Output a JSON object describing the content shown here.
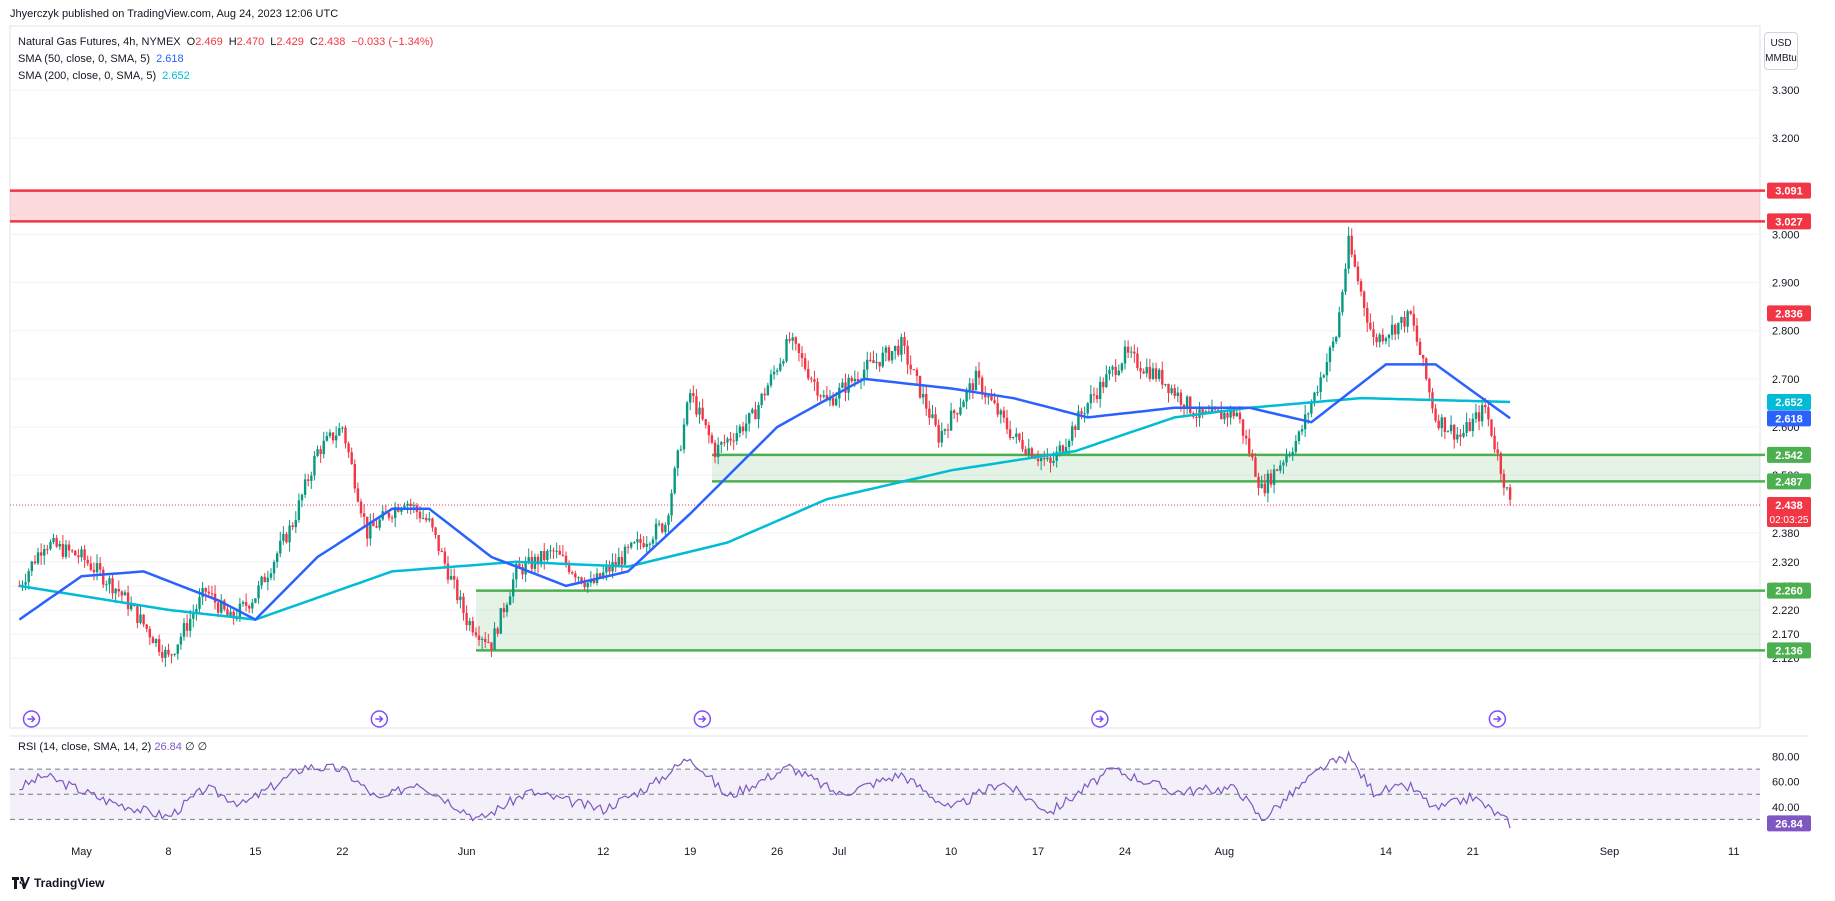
{
  "header": {
    "published": "Jhyerczyk published on TradingView.com, Aug 24, 2023 12:06 UTC"
  },
  "legend": {
    "symbol": "Natural Gas Futures, 4h, NYMEX",
    "open_label": "O",
    "open": "2.469",
    "high_label": "H",
    "high": "2.470",
    "low_label": "L",
    "low": "2.429",
    "close_label": "C",
    "close": "2.438",
    "change": "−0.033 (−1.34%)",
    "sma50_label": "SMA (50, close, 0, SMA, 5)",
    "sma50_value": "2.618",
    "sma200_label": "SMA (200, close, 0, SMA, 5)",
    "sma200_value": "2.652"
  },
  "unit": {
    "line1": "USD",
    "line2": "MMBtu"
  },
  "rsi": {
    "label": "RSI (14, close, SMA, 14, 2)",
    "value": "26.84",
    "extra": "∅ ∅"
  },
  "brand": "TradingView",
  "colors": {
    "up": "#089981",
    "down": "#f23645",
    "sma50": "#2962ff",
    "sma200": "#00bcd4",
    "resistance": "#f23645",
    "support": "#4caf50",
    "rsi": "#7e57c2"
  },
  "chart_data": {
    "type": "candlestick",
    "timeframe": "4h",
    "price_axis_ticks": [
      "3.300",
      "3.200",
      "3.000",
      "2.900",
      "2.800",
      "2.700",
      "2.600",
      "2.500",
      "2.380",
      "2.320",
      "2.270",
      "2.220",
      "2.170",
      "2.120"
    ],
    "time_axis_ticks": [
      "May",
      "8",
      "15",
      "22",
      "Jun",
      "12",
      "19",
      "26",
      "Jul",
      "10",
      "17",
      "24",
      "Aug",
      "14",
      "21",
      "Sep",
      "11"
    ],
    "ylim": [
      2.1,
      3.35
    ],
    "price_path_anchors": [
      {
        "date": "Apr 26",
        "value": 2.27
      },
      {
        "date": "Apr 28",
        "value": 2.36
      },
      {
        "date": "May 1",
        "value": 2.33
      },
      {
        "date": "May 4",
        "value": 2.26
      },
      {
        "date": "May 8",
        "value": 2.12
      },
      {
        "date": "May 11",
        "value": 2.26
      },
      {
        "date": "May 13",
        "value": 2.2
      },
      {
        "date": "May 15",
        "value": 2.25
      },
      {
        "date": "May 18",
        "value": 2.4
      },
      {
        "date": "May 20",
        "value": 2.55
      },
      {
        "date": "May 22",
        "value": 2.6
      },
      {
        "date": "May 24",
        "value": 2.38
      },
      {
        "date": "May 27",
        "value": 2.45
      },
      {
        "date": "May 29",
        "value": 2.4
      },
      {
        "date": "Jun 1",
        "value": 2.2
      },
      {
        "date": "Jun 3",
        "value": 2.15
      },
      {
        "date": "Jun 5",
        "value": 2.3
      },
      {
        "date": "Jun 8",
        "value": 2.34
      },
      {
        "date": "Jun 11",
        "value": 2.27
      },
      {
        "date": "Jun 14",
        "value": 2.34
      },
      {
        "date": "Jun 17",
        "value": 2.4
      },
      {
        "date": "Jun 19",
        "value": 2.67
      },
      {
        "date": "Jun 21",
        "value": 2.55
      },
      {
        "date": "Jun 24",
        "value": 2.62
      },
      {
        "date": "Jun 27",
        "value": 2.78
      },
      {
        "date": "Jun 30",
        "value": 2.65
      },
      {
        "date": "Jul 3",
        "value": 2.72
      },
      {
        "date": "Jul 6",
        "value": 2.77
      },
      {
        "date": "Jul 9",
        "value": 2.58
      },
      {
        "date": "Jul 12",
        "value": 2.7
      },
      {
        "date": "Jul 15",
        "value": 2.58
      },
      {
        "date": "Jul 18",
        "value": 2.52
      },
      {
        "date": "Jul 21",
        "value": 2.65
      },
      {
        "date": "Jul 24",
        "value": 2.75
      },
      {
        "date": "Jul 27",
        "value": 2.7
      },
      {
        "date": "Jul 30",
        "value": 2.62
      },
      {
        "date": "Aug 2",
        "value": 2.63
      },
      {
        "date": "Aug 4",
        "value": 2.47
      },
      {
        "date": "Aug 7",
        "value": 2.58
      },
      {
        "date": "Aug 10",
        "value": 2.79
      },
      {
        "date": "Aug 11",
        "value": 2.98
      },
      {
        "date": "Aug 13",
        "value": 2.78
      },
      {
        "date": "Aug 16",
        "value": 2.83
      },
      {
        "date": "Aug 18",
        "value": 2.62
      },
      {
        "date": "Aug 20",
        "value": 2.58
      },
      {
        "date": "Aug 22",
        "value": 2.64
      },
      {
        "date": "Aug 24",
        "value": 2.44
      }
    ],
    "sma50_anchors": [
      {
        "date": "Apr 26",
        "value": 2.2
      },
      {
        "date": "May 1",
        "value": 2.29
      },
      {
        "date": "May 6",
        "value": 2.3
      },
      {
        "date": "May 12",
        "value": 2.24
      },
      {
        "date": "May 15",
        "value": 2.2
      },
      {
        "date": "May 20",
        "value": 2.33
      },
      {
        "date": "May 26",
        "value": 2.43
      },
      {
        "date": "May 29",
        "value": 2.43
      },
      {
        "date": "Jun 3",
        "value": 2.33
      },
      {
        "date": "Jun 9",
        "value": 2.27
      },
      {
        "date": "Jun 14",
        "value": 2.3
      },
      {
        "date": "Jun 19",
        "value": 2.42
      },
      {
        "date": "Jun 26",
        "value": 2.6
      },
      {
        "date": "Jul 3",
        "value": 2.7
      },
      {
        "date": "Jul 10",
        "value": 2.68
      },
      {
        "date": "Jul 15",
        "value": 2.66
      },
      {
        "date": "Jul 21",
        "value": 2.62
      },
      {
        "date": "Jul 28",
        "value": 2.64
      },
      {
        "date": "Aug 3",
        "value": 2.64
      },
      {
        "date": "Aug 8",
        "value": 2.61
      },
      {
        "date": "Aug 14",
        "value": 2.73
      },
      {
        "date": "Aug 18",
        "value": 2.73
      },
      {
        "date": "Aug 24",
        "value": 2.618
      }
    ],
    "sma200_anchors": [
      {
        "date": "Apr 26",
        "value": 2.27
      },
      {
        "date": "May 8",
        "value": 2.22
      },
      {
        "date": "May 15",
        "value": 2.2
      },
      {
        "date": "May 26",
        "value": 2.3
      },
      {
        "date": "Jun 5",
        "value": 2.32
      },
      {
        "date": "Jun 14",
        "value": 2.31
      },
      {
        "date": "Jun 22",
        "value": 2.36
      },
      {
        "date": "Jun 30",
        "value": 2.45
      },
      {
        "date": "Jul 10",
        "value": 2.51
      },
      {
        "date": "Jul 20",
        "value": 2.55
      },
      {
        "date": "Jul 28",
        "value": 2.62
      },
      {
        "date": "Aug 3",
        "value": 2.64
      },
      {
        "date": "Aug 12",
        "value": 2.66
      },
      {
        "date": "Aug 24",
        "value": 2.652
      }
    ],
    "zones": [
      {
        "name": "resistance",
        "from": 3.027,
        "to": 3.091,
        "color": "#f23645"
      },
      {
        "name": "support",
        "from": 2.487,
        "to": 2.542,
        "color": "#4caf50"
      },
      {
        "name": "support",
        "from": 2.136,
        "to": 2.26,
        "color": "#4caf50"
      }
    ],
    "price_labels": [
      {
        "value": "3.091",
        "color": "#f23645"
      },
      {
        "value": "3.027",
        "color": "#f23645"
      },
      {
        "value": "2.836",
        "color": "#f23645"
      },
      {
        "value": "2.652",
        "color": "#00bcd4"
      },
      {
        "value": "2.618",
        "color": "#2962ff"
      },
      {
        "value": "2.542",
        "color": "#4caf50"
      },
      {
        "value": "2.487",
        "color": "#4caf50"
      },
      {
        "value": "2.438",
        "color": "#f23645"
      },
      {
        "value": "2.260",
        "color": "#4caf50"
      },
      {
        "value": "2.136",
        "color": "#4caf50"
      }
    ],
    "countdown": "02:03:25",
    "rsi": {
      "ylim": [
        20,
        90
      ],
      "ticks": [
        "80.00",
        "60.00",
        "40.00"
      ],
      "upper_band": 70,
      "mid": 50,
      "lower_band": 30,
      "last": "26.84",
      "anchors": [
        {
          "date": "Apr 26",
          "value": 55
        },
        {
          "date": "Apr 28",
          "value": 65
        },
        {
          "date": "May 3",
          "value": 45
        },
        {
          "date": "May 8",
          "value": 32
        },
        {
          "date": "May 11",
          "value": 55
        },
        {
          "date": "May 14",
          "value": 42
        },
        {
          "date": "May 19",
          "value": 72
        },
        {
          "date": "May 22",
          "value": 70
        },
        {
          "date": "May 25",
          "value": 45
        },
        {
          "date": "May 28",
          "value": 60
        },
        {
          "date": "Jun 2",
          "value": 30
        },
        {
          "date": "Jun 6",
          "value": 52
        },
        {
          "date": "Jun 12",
          "value": 38
        },
        {
          "date": "Jun 16",
          "value": 58
        },
        {
          "date": "Jun 19",
          "value": 80
        },
        {
          "date": "Jun 22",
          "value": 48
        },
        {
          "date": "Jun 27",
          "value": 72
        },
        {
          "date": "Jul 1",
          "value": 50
        },
        {
          "date": "Jul 6",
          "value": 66
        },
        {
          "date": "Jul 10",
          "value": 38
        },
        {
          "date": "Jul 14",
          "value": 60
        },
        {
          "date": "Jul 18",
          "value": 36
        },
        {
          "date": "Jul 23",
          "value": 70
        },
        {
          "date": "Jul 28",
          "value": 52
        },
        {
          "date": "Aug 2",
          "value": 55
        },
        {
          "date": "Aug 4",
          "value": 30
        },
        {
          "date": "Aug 9",
          "value": 72
        },
        {
          "date": "Aug 11",
          "value": 80
        },
        {
          "date": "Aug 13",
          "value": 52
        },
        {
          "date": "Aug 16",
          "value": 56
        },
        {
          "date": "Aug 18",
          "value": 38
        },
        {
          "date": "Aug 21",
          "value": 48
        },
        {
          "date": "Aug 23",
          "value": 34
        },
        {
          "date": "Aug 24",
          "value": 26.84
        }
      ]
    }
  }
}
